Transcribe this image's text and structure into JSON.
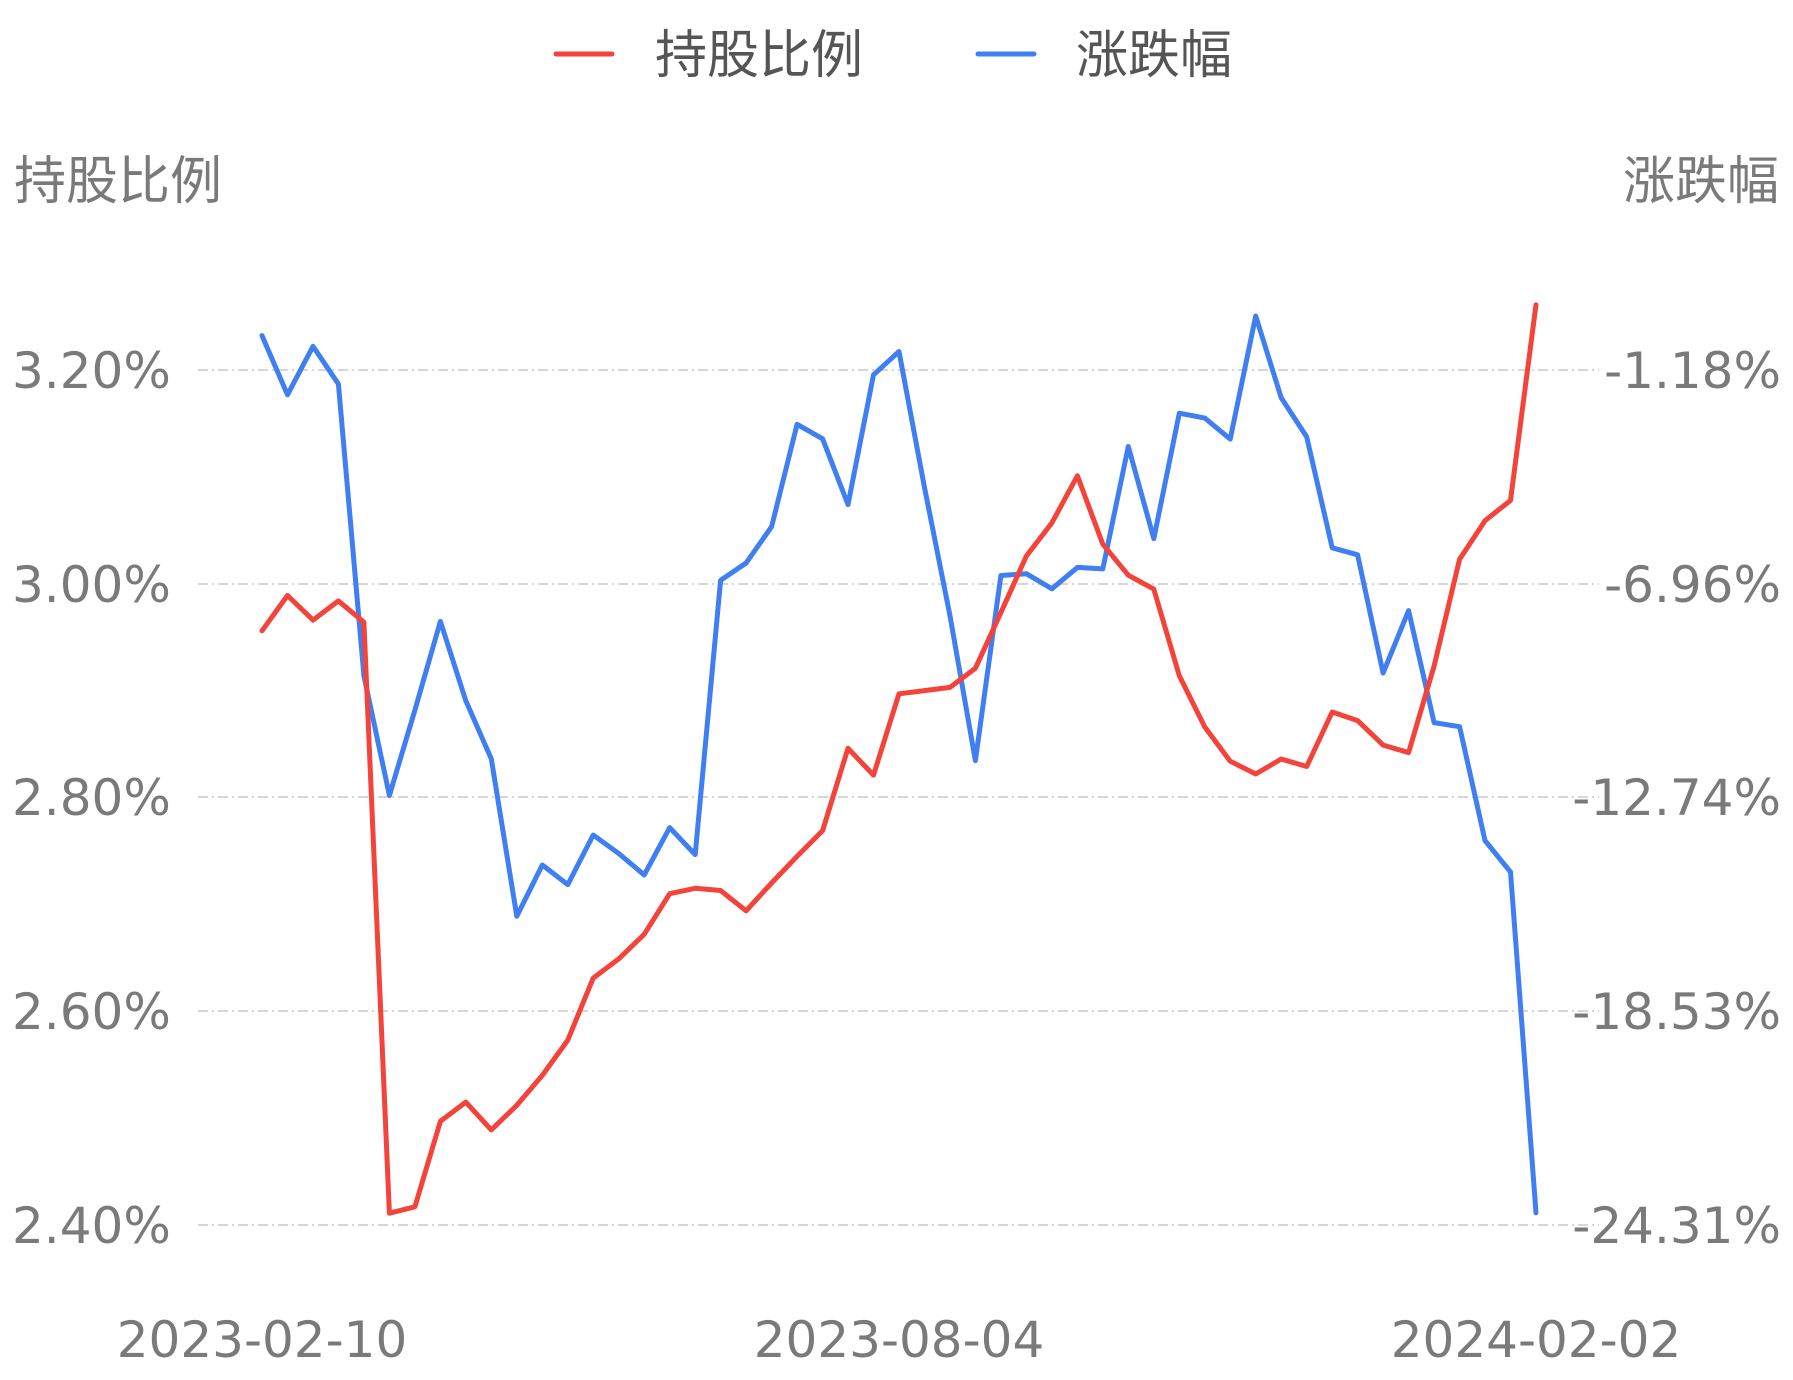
{
  "chart_data": {
    "type": "line",
    "legend_position": "top-center",
    "grid": true,
    "y_left_title": "持股比例",
    "y_right_title": "涨跌幅",
    "y_left_ticks": [
      "3.20%",
      "3.00%",
      "2.80%",
      "2.60%",
      "2.40%"
    ],
    "y_right_ticks": [
      "-1.18%",
      "-6.96%",
      "-12.74%",
      "-18.53%",
      "-24.31%"
    ],
    "y_left_range": [
      2.4,
      3.2
    ],
    "y_right_range": [
      -24.31,
      -1.18
    ],
    "x_tick_labels": [
      "2023-02-10",
      "2023-08-04",
      "2024-02-02"
    ],
    "point_count": 51,
    "series": [
      {
        "name": "持股比例",
        "axis": "left",
        "color": "#f4433b",
        "values": [
          2.956,
          2.989,
          2.966,
          2.984,
          2.964,
          2.411,
          2.417,
          2.497,
          2.515,
          2.489,
          2.512,
          2.54,
          2.573,
          2.631,
          2.649,
          2.672,
          2.71,
          2.715,
          2.713,
          2.694,
          2.72,
          2.745,
          2.769,
          2.846,
          2.821,
          2.897,
          2.9,
          2.903,
          2.921,
          2.973,
          3.026,
          3.057,
          3.101,
          3.037,
          3.008,
          2.995,
          2.914,
          2.866,
          2.834,
          2.822,
          2.836,
          2.829,
          2.88,
          2.872,
          2.849,
          2.842,
          2.923,
          3.023,
          3.059,
          3.078,
          3.261
        ]
      },
      {
        "name": "涨跌幅",
        "axis": "right",
        "color": "#3f7ff2",
        "values": [
          -0.25,
          -1.85,
          -0.54,
          -1.56,
          -9.45,
          -12.69,
          -10.38,
          -7.98,
          -10.13,
          -11.7,
          -15.96,
          -14.57,
          -15.1,
          -13.76,
          -14.26,
          -14.84,
          -13.56,
          -14.29,
          -6.87,
          -6.4,
          -5.42,
          -2.65,
          -3.04,
          -4.82,
          -1.31,
          -0.68,
          -4.36,
          -7.83,
          -11.75,
          -6.74,
          -6.69,
          -7.1,
          -6.52,
          -6.56,
          -3.25,
          -5.74,
          -2.35,
          -2.48,
          -3.05,
          0.28,
          -1.93,
          -2.99,
          -5.99,
          -6.18,
          -9.38,
          -7.69,
          -10.72,
          -10.83,
          -13.91,
          -14.76,
          -23.98
        ]
      }
    ]
  }
}
